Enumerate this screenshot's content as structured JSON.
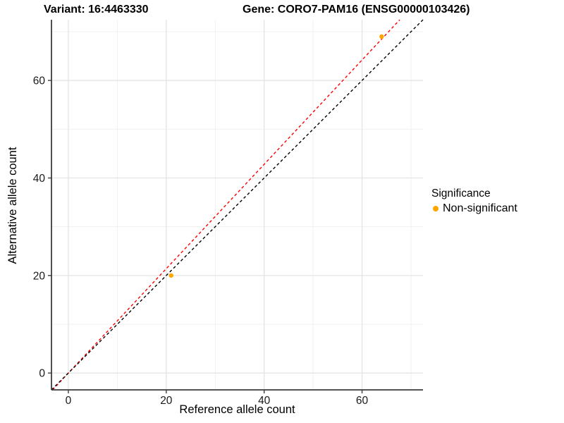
{
  "header": {
    "variant_title": "Variant: 16:4463330",
    "gene_title": "Gene: CORO7-PAM16 (ENSG00000103426)"
  },
  "chart_data": {
    "type": "scatter",
    "title": "",
    "xlabel": "Reference allele count",
    "ylabel": "Alternative allele count",
    "xlim": [
      -3.45,
      72.45
    ],
    "ylim": [
      -3.45,
      72.45
    ],
    "x_ticks": [
      0,
      20,
      40,
      60
    ],
    "y_ticks": [
      0,
      20,
      40,
      60
    ],
    "x_minor_ticks": [
      10,
      30,
      50,
      70
    ],
    "y_minor_ticks": [
      10,
      30,
      50,
      70
    ],
    "grid": "major+minor on white panel",
    "legend_position": "right",
    "points": [
      {
        "x": 21,
        "y": 20,
        "series": "Non-significant"
      },
      {
        "x": 64,
        "y": 69,
        "series": "Non-significant"
      }
    ],
    "lines": [
      {
        "name": "fit-line",
        "slope": 1.07,
        "intercept": 0,
        "style": "dashed",
        "color": "#FF0000"
      },
      {
        "name": "identity-line",
        "slope": 1.0,
        "intercept": 0,
        "style": "dashed",
        "color": "#000000"
      }
    ],
    "point_color": "#FFA500",
    "colors": {
      "major_grid": "#E2E2E2",
      "minor_grid": "#F0F0F0",
      "axis_line": "#3C3C3C",
      "tick_text": "#1A1A1A"
    }
  },
  "legend": {
    "title": "Significance",
    "items": [
      {
        "label": "Non-significant",
        "color": "#FFA500"
      }
    ]
  }
}
